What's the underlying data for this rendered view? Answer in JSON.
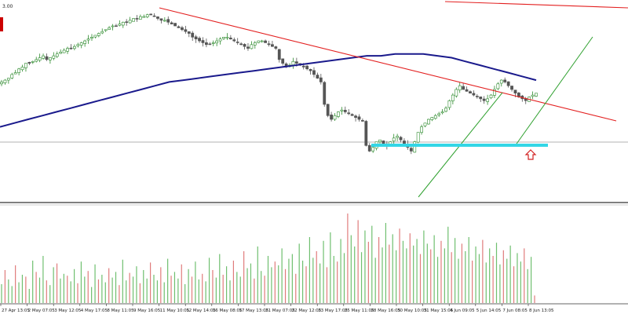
{
  "chart_data": {
    "type": "candlestick",
    "price_label": "3.00",
    "price_range": [
      0,
      100
    ],
    "volume_range": [
      0,
      100
    ],
    "colors": {
      "bull": "#2e8b2e",
      "bear": "#555555",
      "volume_up": "#6fbf6f",
      "volume_down": "#e07b7b",
      "moving_average": "#1a1a8c",
      "trend_line": "#e32020",
      "channel": "#2ea02e",
      "support": "#33d6e6",
      "arrow": "#d22222",
      "top_left_marker": "#cc0000"
    },
    "x_ticks": [
      "27 Apr 13:05",
      "2 May 07:05",
      "3 May 12:05",
      "4 May 17:05",
      "8 May 11:05",
      "9 May 16:05",
      "11 May 10:05",
      "12 May 14:05",
      "16 May 08:05",
      "17 May 13:05",
      "21 May 07:05",
      "22 May 12:05",
      "23 May 17:05",
      "25 May 11:05",
      "28 May 16:05",
      "30 May 10:05",
      "31 May 15:05",
      "4 Jun 09:05",
      "5 Jun 14:05",
      "7 Jun 08:05",
      "8 Jun 13:05"
    ],
    "candles": [
      62,
      63,
      64,
      66,
      67,
      69,
      70,
      72,
      72,
      73,
      74,
      75,
      76,
      74,
      75,
      76,
      77,
      78,
      79,
      80,
      80,
      81,
      82,
      83,
      84,
      85,
      86,
      87,
      88,
      89,
      90,
      91,
      92,
      92,
      93,
      94,
      94,
      95,
      96,
      96,
      97,
      97,
      98,
      98,
      97,
      96,
      95,
      95,
      94,
      93,
      92,
      91,
      90,
      89,
      88,
      86,
      85,
      84,
      83,
      82,
      82,
      83,
      84,
      85,
      86,
      86,
      85,
      84,
      83,
      82,
      81,
      80,
      82,
      83,
      84,
      84,
      83,
      82,
      81,
      80,
      74,
      72,
      70,
      71,
      73,
      72,
      71,
      70,
      69,
      68,
      66,
      64,
      62,
      50,
      44,
      42,
      44,
      46,
      47,
      46,
      45,
      44,
      43,
      42,
      41,
      28,
      25,
      27,
      30,
      31,
      29,
      28,
      30,
      32,
      33,
      31,
      29,
      27,
      25,
      30,
      35,
      38,
      40,
      42,
      43,
      44,
      45,
      46,
      48,
      52,
      55,
      58,
      60,
      58,
      57,
      56,
      55,
      54,
      53,
      52,
      53,
      55,
      58,
      61,
      63,
      62,
      60,
      58,
      56,
      54,
      53,
      52,
      54,
      55,
      56
    ],
    "moving_average": [
      38,
      40,
      42,
      44,
      46,
      48,
      50,
      52,
      54,
      56,
      58,
      60,
      62,
      63,
      64,
      65,
      66,
      67,
      68,
      69,
      70,
      71,
      72,
      73,
      74,
      75,
      76,
      76,
      77,
      77,
      77,
      76,
      75,
      73,
      71,
      69,
      67,
      65,
      63
    ],
    "volumes": [
      20,
      35,
      25,
      18,
      40,
      22,
      30,
      28,
      15,
      45,
      33,
      27,
      50,
      24,
      19,
      38,
      42,
      26,
      31,
      29,
      23,
      36,
      21,
      44,
      28,
      34,
      17,
      41,
      25,
      30,
      22,
      37,
      27,
      33,
      19,
      46,
      24,
      32,
      28,
      39,
      21,
      35,
      26,
      43,
      30,
      24,
      38,
      22,
      47,
      29,
      33,
      26,
      41,
      20,
      36,
      28,
      44,
      25,
      31,
      23,
      48,
      35,
      27,
      52,
      30,
      39,
      24,
      45,
      33,
      28,
      55,
      37,
      42,
      26,
      60,
      34,
      29,
      50,
      38,
      44,
      40,
      58,
      36,
      47,
      52,
      31,
      63,
      45,
      39,
      70,
      48,
      55,
      42,
      66,
      38,
      75,
      50,
      44,
      68,
      53,
      95,
      72,
      60,
      88,
      54,
      77,
      65,
      82,
      48,
      70,
      59,
      85,
      62,
      73,
      56,
      79,
      66,
      58,
      74,
      61,
      68,
      52,
      77,
      63,
      57,
      72,
      49,
      66,
      58,
      81,
      54,
      69,
      47,
      63,
      55,
      70,
      45,
      60,
      52,
      67,
      43,
      58,
      50,
      64,
      41,
      56,
      47,
      61,
      39,
      53,
      44,
      58,
      36,
      49,
      8
    ]
  }
}
